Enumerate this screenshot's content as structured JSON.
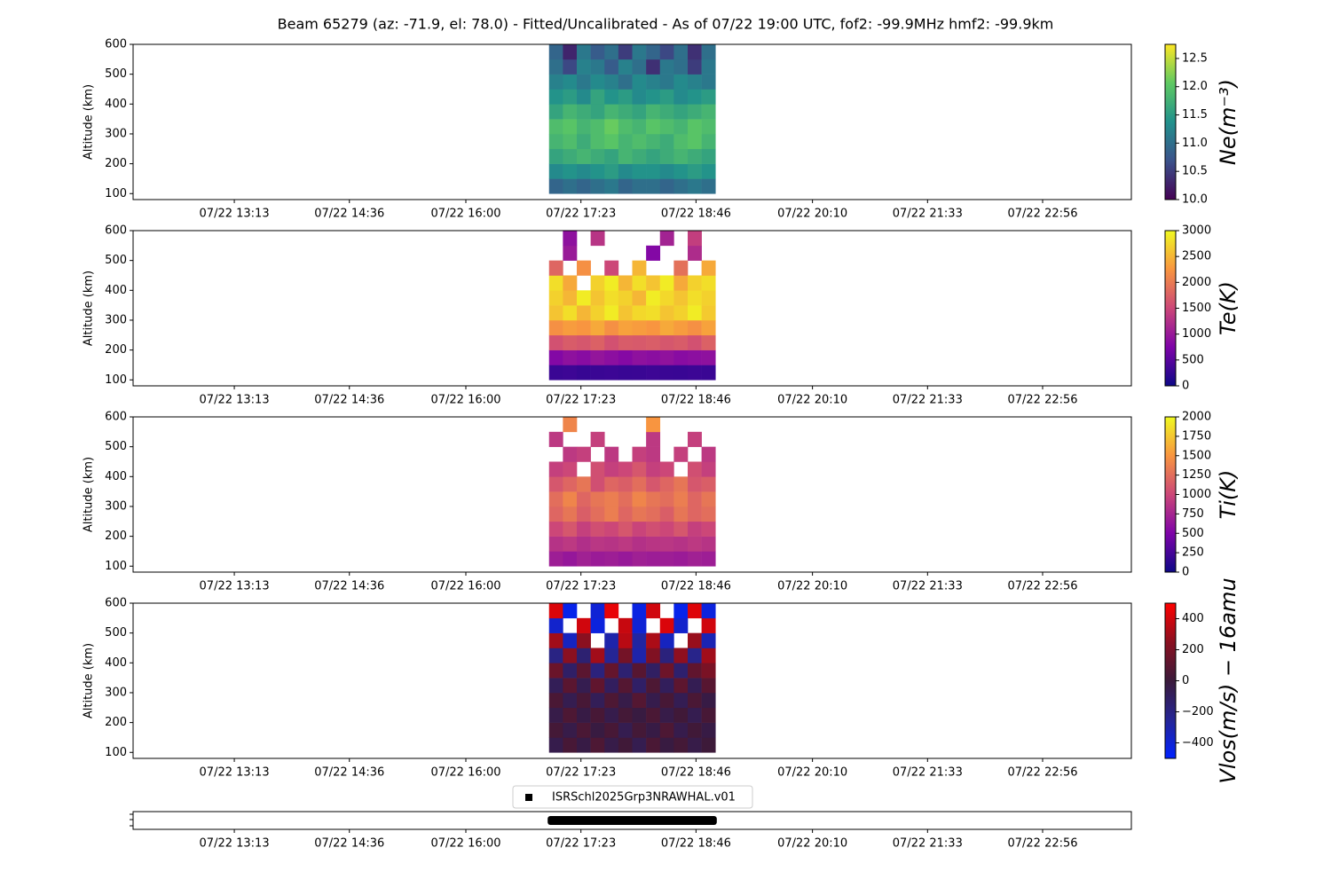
{
  "chart_data": [
    {
      "type": "heatmap",
      "title": "Beam 65279 (az: -71.9, el: 78.0) - Fitted/Uncalibrated - As of 07/22 19:00 UTC, fof2: -99.9MHz  hmf2: -99.9km",
      "ylabel": "Altitude (km)",
      "colorbar_label": "Ne(m⁻³)",
      "colormap": "viridis",
      "clim": [
        10,
        12.75
      ],
      "cticks": [
        {
          "value": 10,
          "label": "10.0"
        },
        {
          "value": 10.5,
          "label": "10.5"
        },
        {
          "value": 11,
          "label": "11.0"
        },
        {
          "value": 11.5,
          "label": "11.5"
        },
        {
          "value": 12,
          "label": "12.0"
        },
        {
          "value": 12.5,
          "label": "12.5"
        }
      ],
      "xlim": [
        720,
        1440
      ],
      "xticks": [
        {
          "value": 793,
          "label": "07/22 13:13"
        },
        {
          "value": 876,
          "label": "07/22 14:36"
        },
        {
          "value": 960,
          "label": "07/22 16:00"
        },
        {
          "value": 1043,
          "label": "07/22 17:23"
        },
        {
          "value": 1126,
          "label": "07/22 18:46"
        },
        {
          "value": 1210,
          "label": "07/22 20:10"
        },
        {
          "value": 1293,
          "label": "07/22 21:33"
        },
        {
          "value": 1376,
          "label": "07/22 22:56"
        }
      ],
      "ylim": [
        80,
        600
      ],
      "yticks": [
        100,
        200,
        300,
        400,
        500,
        600
      ],
      "x": [
        1020,
        1030,
        1040,
        1050,
        1060,
        1070,
        1080,
        1090,
        1100,
        1110,
        1120,
        1130,
        1140
      ],
      "y": [
        100,
        150,
        200,
        250,
        300,
        350,
        400,
        450,
        500,
        550,
        600
      ],
      "values": [
        [
          10.9,
          11.0,
          10.9,
          11.0,
          11.1,
          10.9,
          11.0,
          11.0,
          10.9,
          11.0,
          11.1,
          11.0
        ],
        [
          11.3,
          11.4,
          11.3,
          11.4,
          11.5,
          11.3,
          11.4,
          11.4,
          11.3,
          11.4,
          11.5,
          11.4
        ],
        [
          11.6,
          11.7,
          11.8,
          11.7,
          11.6,
          11.8,
          11.7,
          11.6,
          11.7,
          11.8,
          11.7,
          11.6
        ],
        [
          11.8,
          11.9,
          11.7,
          11.9,
          12.0,
          11.8,
          11.9,
          11.8,
          11.7,
          11.9,
          12.0,
          11.8
        ],
        [
          11.9,
          12.0,
          11.8,
          11.9,
          12.1,
          11.9,
          11.8,
          12.0,
          11.9,
          11.8,
          12.0,
          11.9
        ],
        [
          11.6,
          11.8,
          11.7,
          11.6,
          11.8,
          11.7,
          11.6,
          11.8,
          11.7,
          11.6,
          11.7,
          11.8
        ],
        [
          11.4,
          11.5,
          11.3,
          11.6,
          11.4,
          11.5,
          11.3,
          11.4,
          11.5,
          11.3,
          11.4,
          11.5
        ],
        [
          11.2,
          11.3,
          11.1,
          11.3,
          11.2,
          11.0,
          11.3,
          11.2,
          11.1,
          11.3,
          11.2,
          11.1
        ],
        [
          11.0,
          10.6,
          11.2,
          11.1,
          10.8,
          11.2,
          11.0,
          10.4,
          11.1,
          11.0,
          10.5,
          11.1
        ],
        [
          10.9,
          10.3,
          11.1,
          10.8,
          11.0,
          10.5,
          11.1,
          10.9,
          10.6,
          11.0,
          10.4,
          11.0
        ]
      ]
    },
    {
      "type": "heatmap",
      "ylabel": "Altitude (km)",
      "colorbar_label": "Te(K)",
      "colormap": "plasma",
      "clim": [
        0,
        3000
      ],
      "cticks": [
        0,
        500,
        1000,
        1500,
        2000,
        2500,
        3000
      ],
      "xlim": [
        720,
        1440
      ],
      "xticks": [
        {
          "value": 793,
          "label": "07/22 13:13"
        },
        {
          "value": 876,
          "label": "07/22 14:36"
        },
        {
          "value": 960,
          "label": "07/22 16:00"
        },
        {
          "value": 1043,
          "label": "07/22 17:23"
        },
        {
          "value": 1126,
          "label": "07/22 18:46"
        },
        {
          "value": 1210,
          "label": "07/22 20:10"
        },
        {
          "value": 1293,
          "label": "07/22 21:33"
        },
        {
          "value": 1376,
          "label": "07/22 22:56"
        }
      ],
      "ylim": [
        80,
        600
      ],
      "yticks": [
        100,
        200,
        300,
        400,
        500,
        600
      ],
      "x": [
        1020,
        1030,
        1040,
        1050,
        1060,
        1070,
        1080,
        1090,
        1100,
        1110,
        1120,
        1130,
        1140
      ],
      "y": [
        100,
        150,
        200,
        250,
        300,
        350,
        400,
        450,
        500,
        550,
        600
      ],
      "values": [
        [
          300,
          320,
          280,
          300,
          310,
          290,
          300,
          320,
          300,
          290,
          310,
          300
        ],
        [
          800,
          900,
          850,
          950,
          880,
          820,
          900,
          870,
          920,
          850,
          880,
          900
        ],
        [
          1600,
          1700,
          1650,
          1750,
          1600,
          1700,
          1680,
          1720,
          1650,
          1700,
          1600,
          1750
        ],
        [
          2200,
          2300,
          2250,
          2400,
          2200,
          2350,
          2300,
          2250,
          2400,
          2300,
          2200,
          2350
        ],
        [
          2600,
          2800,
          2500,
          2700,
          2900,
          2600,
          2750,
          2800,
          2600,
          2700,
          2900,
          2650
        ],
        [
          2700,
          2500,
          2900,
          2600,
          2800,
          2700,
          2500,
          2900,
          2750,
          2600,
          2800,
          2700
        ],
        [
          2800,
          2400,
          null,
          2700,
          2900,
          2500,
          2800,
          2600,
          2900,
          2400,
          2700,
          2800
        ],
        [
          1800,
          null,
          2200,
          null,
          1500,
          null,
          2500,
          null,
          null,
          1900,
          null,
          2400
        ],
        [
          null,
          1000,
          null,
          null,
          null,
          null,
          null,
          800,
          null,
          null,
          1200,
          null
        ],
        [
          null,
          900,
          null,
          1300,
          null,
          null,
          null,
          null,
          1100,
          null,
          1400,
          null
        ]
      ]
    },
    {
      "type": "heatmap",
      "ylabel": "Altitude (km)",
      "colorbar_label": "Ti(K)",
      "colormap": "plasma",
      "clim": [
        0,
        2000
      ],
      "cticks": [
        0,
        250,
        500,
        750,
        1000,
        1250,
        1500,
        1750,
        2000
      ],
      "xlim": [
        720,
        1440
      ],
      "xticks": [
        {
          "value": 793,
          "label": "07/22 13:13"
        },
        {
          "value": 876,
          "label": "07/22 14:36"
        },
        {
          "value": 960,
          "label": "07/22 16:00"
        },
        {
          "value": 1043,
          "label": "07/22 17:23"
        },
        {
          "value": 1126,
          "label": "07/22 18:46"
        },
        {
          "value": 1210,
          "label": "07/22 20:10"
        },
        {
          "value": 1293,
          "label": "07/22 21:33"
        },
        {
          "value": 1376,
          "label": "07/22 22:56"
        }
      ],
      "ylim": [
        80,
        600
      ],
      "yticks": [
        100,
        200,
        300,
        400,
        500,
        600
      ],
      "x": [
        1020,
        1030,
        1040,
        1050,
        1060,
        1070,
        1080,
        1090,
        1100,
        1110,
        1120,
        1130,
        1140
      ],
      "y": [
        100,
        150,
        200,
        250,
        300,
        350,
        400,
        450,
        500,
        550,
        600
      ],
      "values": [
        [
          700,
          650,
          720,
          680,
          700,
          660,
          710,
          690,
          700,
          680,
          720,
          700
        ],
        [
          850,
          900,
          820,
          880,
          860,
          900,
          840,
          870,
          880,
          850,
          900,
          860
        ],
        [
          1000,
          1100,
          950,
          1050,
          1000,
          1100,
          980,
          1050,
          1000,
          1100,
          950,
          1000
        ],
        [
          1200,
          1300,
          1150,
          1250,
          1350,
          1200,
          1300,
          1250,
          1150,
          1300,
          1200,
          1250
        ],
        [
          1250,
          1400,
          1200,
          1300,
          1350,
          1250,
          1400,
          1300,
          1250,
          1350,
          1200,
          1300
        ],
        [
          1100,
          1200,
          1300,
          1050,
          1200,
          1150,
          1250,
          1100,
          1200,
          1300,
          1100,
          1150
        ],
        [
          950,
          1000,
          null,
          1050,
          950,
          1000,
          1100,
          950,
          1000,
          null,
          1050,
          950
        ],
        [
          null,
          900,
          950,
          null,
          900,
          null,
          950,
          900,
          null,
          950,
          null,
          900
        ],
        [
          900,
          null,
          null,
          950,
          null,
          null,
          null,
          900,
          null,
          null,
          950,
          null
        ],
        [
          null,
          1400,
          null,
          null,
          null,
          null,
          null,
          1500,
          null,
          null,
          null,
          null
        ]
      ]
    },
    {
      "type": "heatmap",
      "ylabel": "Altitude (km)",
      "colorbar_label": "Vlos(m/s) − 16amu",
      "colormap": "bwr",
      "clim": [
        -500,
        500
      ],
      "cticks": [
        {
          "value": -400,
          "label": "−400"
        },
        {
          "value": -200,
          "label": "−200"
        },
        0,
        200,
        400
      ],
      "xlim": [
        720,
        1440
      ],
      "xticks": [
        {
          "value": 793,
          "label": "07/22 13:13"
        },
        {
          "value": 876,
          "label": "07/22 14:36"
        },
        {
          "value": 960,
          "label": "07/22 16:00"
        },
        {
          "value": 1043,
          "label": "07/22 17:23"
        },
        {
          "value": 1126,
          "label": "07/22 18:46"
        },
        {
          "value": 1210,
          "label": "07/22 20:10"
        },
        {
          "value": 1293,
          "label": "07/22 21:33"
        },
        {
          "value": 1376,
          "label": "07/22 22:56"
        }
      ],
      "ylim": [
        80,
        600
      ],
      "yticks": [
        100,
        200,
        300,
        400,
        500,
        600
      ],
      "x": [
        1020,
        1030,
        1040,
        1050,
        1060,
        1070,
        1080,
        1090,
        1100,
        1110,
        1120,
        1130,
        1140
      ],
      "y": [
        100,
        150,
        200,
        250,
        300,
        350,
        400,
        450,
        500,
        550,
        600
      ],
      "values": [
        [
          -50,
          40,
          -30,
          60,
          -40,
          20,
          -60,
          50,
          -20,
          30,
          -40,
          10
        ],
        [
          30,
          -40,
          50,
          -20,
          40,
          -60,
          30,
          -30,
          60,
          -50,
          20,
          -30
        ],
        [
          -40,
          60,
          -30,
          40,
          -50,
          30,
          -20,
          50,
          -40,
          20,
          -60,
          40
        ],
        [
          50,
          -60,
          40,
          -80,
          60,
          -40,
          80,
          -50,
          40,
          -70,
          50,
          -30
        ],
        [
          -80,
          100,
          -60,
          120,
          -100,
          80,
          -120,
          60,
          -90,
          110,
          -70,
          90
        ],
        [
          150,
          -120,
          100,
          -180,
          130,
          -150,
          90,
          -110,
          160,
          -140,
          120,
          200
        ],
        [
          -200,
          250,
          -150,
          300,
          -250,
          180,
          -300,
          220,
          -180,
          260,
          -220,
          300
        ],
        [
          300,
          -350,
          250,
          null,
          -300,
          350,
          -280,
          320,
          -350,
          null,
          280,
          -320
        ],
        [
          -380,
          null,
          400,
          -420,
          null,
          380,
          -400,
          null,
          420,
          -380,
          null,
          400
        ],
        [
          420,
          -450,
          null,
          -400,
          450,
          null,
          -430,
          400,
          null,
          -450,
          430,
          -420
        ]
      ]
    },
    {
      "type": "timeline",
      "xlim": [
        720,
        1440
      ],
      "xticks": [
        {
          "value": 793,
          "label": "07/22 13:13"
        },
        {
          "value": 876,
          "label": "07/22 14:36"
        },
        {
          "value": 960,
          "label": "07/22 16:00"
        },
        {
          "value": 1043,
          "label": "07/22 17:23"
        },
        {
          "value": 1126,
          "label": "07/22 18:46"
        },
        {
          "value": 1210,
          "label": "07/22 20:10"
        },
        {
          "value": 1293,
          "label": "07/22 21:33"
        },
        {
          "value": 1376,
          "label": "07/22 22:56"
        }
      ],
      "series": [
        {
          "name": "ISRSchl2025Grp3NRAWHAL.v01",
          "color": "#000000",
          "x": [
            1019,
            1141
          ]
        }
      ]
    }
  ]
}
